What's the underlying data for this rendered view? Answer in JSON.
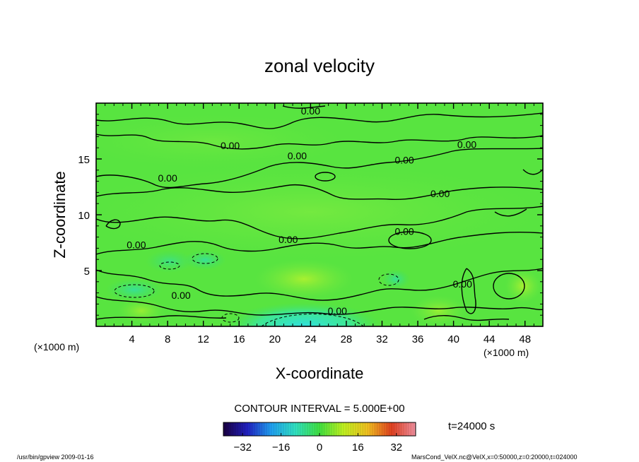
{
  "chart_data": {
    "type": "heatmap",
    "title": "zonal velocity",
    "xlabel": "X-coordinate",
    "ylabel": "Z-coordinate",
    "x_unit": "(×1000 m)",
    "y_unit": "(×1000 m)",
    "xlim": [
      0,
      50
    ],
    "ylim": [
      0,
      20
    ],
    "x_ticks": [
      4,
      8,
      12,
      16,
      20,
      24,
      28,
      32,
      36,
      40,
      44,
      48
    ],
    "y_ticks": [
      5,
      10,
      15
    ],
    "contour_interval_text": "CONTOUR INTERVAL = 5.000E+00",
    "contour_labels": [
      {
        "text": "0.00",
        "x": 24,
        "z": 19.3
      },
      {
        "text": "0.00",
        "x": 15,
        "z": 16.2
      },
      {
        "text": "0.00",
        "x": 22.5,
        "z": 15.3
      },
      {
        "text": "0.00",
        "x": 34.5,
        "z": 14.9
      },
      {
        "text": "0.00",
        "x": 41.5,
        "z": 16.3
      },
      {
        "text": "0.00",
        "x": 8,
        "z": 13.3
      },
      {
        "text": "0.00",
        "x": 38.5,
        "z": 11.9
      },
      {
        "text": "0.00",
        "x": 34.5,
        "z": 8.5
      },
      {
        "text": "0.00",
        "x": 21.5,
        "z": 7.8
      },
      {
        "text": "0.00",
        "x": 4.5,
        "z": 7.3
      },
      {
        "text": "0.00",
        "x": 9.5,
        "z": 2.8
      },
      {
        "text": "0.00",
        "x": 27,
        "z": 1.4
      },
      {
        "text": "0.00",
        "x": 41,
        "z": 3.8
      }
    ],
    "colorbar": {
      "min": -40,
      "max": 40,
      "tick_labels": [
        -32,
        -16,
        0,
        16,
        32
      ],
      "colors": [
        "#1a0040",
        "#2020c0",
        "#20a0f0",
        "#30e0c0",
        "#40e040",
        "#c0f020",
        "#f0c020",
        "#e04020",
        "#f090a0"
      ]
    },
    "time_text": "t=24000 s",
    "footer_left": "/usr/bin/gpview   2009-01-16",
    "footer_right": "MarsCond_VelX.nc@VelX,x=0:50000,z=0:20000,t=024000"
  }
}
